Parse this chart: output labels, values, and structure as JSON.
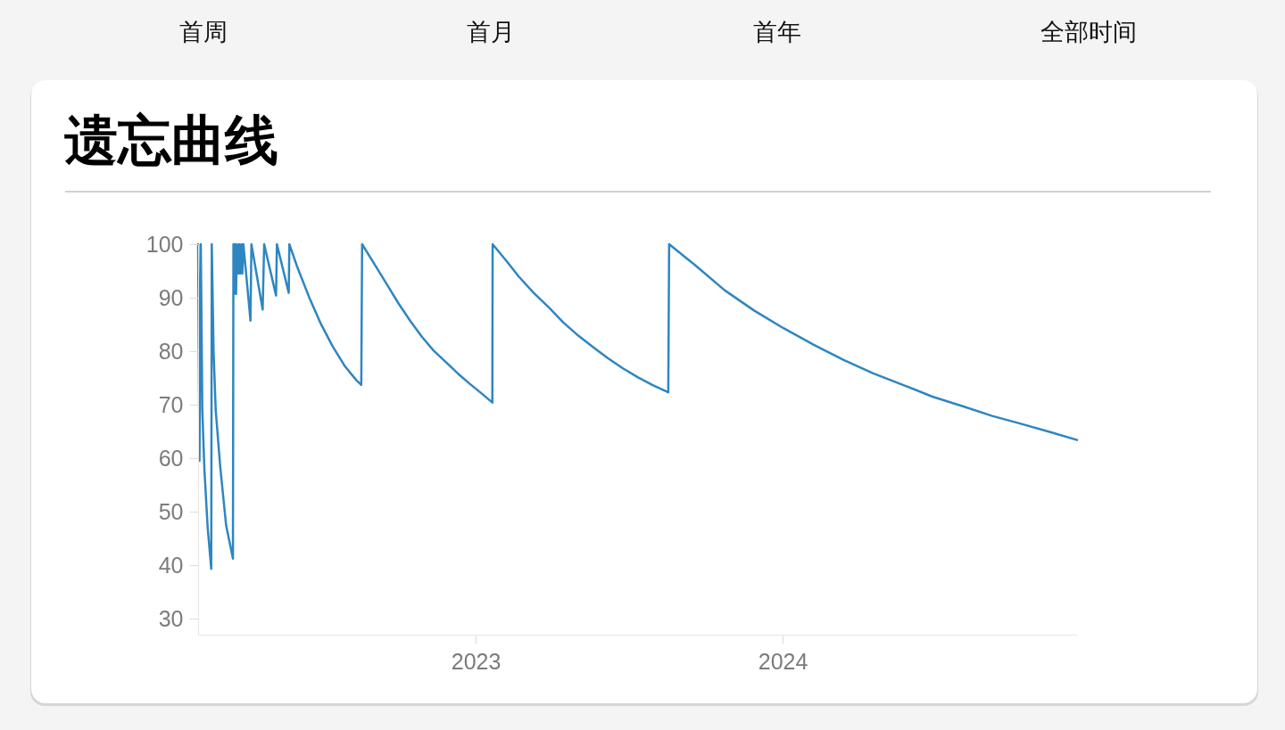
{
  "chart_data": {
    "type": "line",
    "title": "遗忘曲线",
    "annotations": [
      "首周",
      "首月",
      "首年",
      "全部时间"
    ],
    "x": [
      "2022-02-05",
      "2022-02-06T15:00",
      "2022-02-08T05:00",
      "2022-02-10",
      "2022-02-12T11:00",
      "2022-02-16T09:00",
      "2022-02-20T15:00",
      "2022-02-21T06:00",
      "2022-02-23T09:00",
      "2022-02-25T22:00",
      "2022-03-03T06:00",
      "2022-03-10T06:00",
      "2022-03-18T10:00",
      "2022-03-19",
      "2022-03-20",
      "2022-03-21T01:00",
      "2022-03-22T03:00",
      "2022-03-23T04:00",
      "2022-03-24T06:00",
      "2022-03-25T20:00",
      "2022-03-26T21:00",
      "2022-03-28T12:00",
      "2022-03-29T13:00",
      "2022-03-30T20:00",
      "2022-04-08T07:00",
      "2022-04-09T09:00",
      "2022-04-22T18:00",
      "2022-04-24T13:00",
      "2022-05-08T16:00",
      "2022-05-09T17:00",
      "2022-05-23T18:00",
      "2022-05-24T12:00",
      "2022-06-03",
      "2022-06-17",
      "2022-07-01",
      "2022-07-15",
      "2022-07-29",
      "2022-08-12",
      "2022-08-18",
      "2022-08-19",
      "2022-09-03",
      "2022-09-17",
      "2022-10-01",
      "2022-10-15",
      "2022-10-29",
      "2022-11-12",
      "2022-11-27",
      "2022-12-11",
      "2022-12-25",
      "2023-01-08",
      "2023-01-20T20:00",
      "2023-01-21T04:00",
      "2023-02-07",
      "2023-02-21",
      "2023-03-11",
      "2023-03-29",
      "2023-04-15",
      "2023-05-03",
      "2023-05-21",
      "2023-06-07",
      "2023-06-25",
      "2023-07-13",
      "2023-07-30",
      "2023-08-18",
      "2023-08-19",
      "2023-09-18",
      "2023-10-24",
      "2023-11-28",
      "2024-01-02",
      "2024-02-07",
      "2024-03-13",
      "2024-04-17",
      "2024-05-23",
      "2024-06-27",
      "2024-08-02",
      "2024-09-06",
      "2024-10-11",
      "2024-11-16",
      "2024-12-16"
    ],
    "series": [
      {
        "color": "#2e86c1",
        "values": [
          100,
          59.5,
          100,
          69,
          58,
          47,
          39.3,
          100,
          80.1,
          69,
          58.5,
          47.5,
          41.2,
          100,
          90.7,
          100,
          90.7,
          100,
          94.5,
          100,
          94.5,
          100,
          94.5,
          100,
          85.7,
          100,
          87.8,
          100,
          90.4,
          100,
          90.9,
          100,
          95.7,
          90.1,
          85.1,
          80.9,
          77.3,
          74.6,
          73.7,
          100,
          96.2,
          92.6,
          89.0,
          85.7,
          82.7,
          80.1,
          77.9,
          75.8,
          73.9,
          72.1,
          70.4,
          100,
          96.8,
          94.0,
          90.9,
          88.2,
          85.4,
          82.9,
          80.7,
          78.7,
          76.8,
          75.1,
          73.7,
          72.3,
          100,
          96.2,
          91.4,
          87.6,
          84.3,
          81.2,
          78.4,
          75.9,
          73.7,
          71.5,
          69.7,
          67.9,
          66.4,
          64.8,
          63.4
        ]
      }
    ],
    "xlim": [
      "2022-02-05",
      "2024-12-16"
    ],
    "xticks": [
      "2023",
      "2024"
    ],
    "ylim": [
      27,
      100
    ],
    "yticks": [
      30,
      40,
      50,
      60,
      70,
      80,
      90,
      100
    ]
  }
}
